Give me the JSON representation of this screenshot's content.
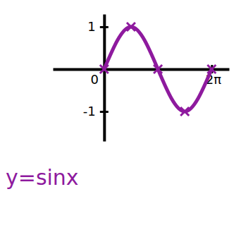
{
  "chart_data": {
    "type": "line",
    "title": "y=sinx",
    "x": [
      0,
      1.5708,
      3.1416,
      4.7124,
      6.2832
    ],
    "values": [
      0,
      1,
      0,
      -1,
      0
    ],
    "color": "#8e1a9e",
    "marker": "x",
    "line_style": "solid",
    "xlim": [
      -3.0,
      7.3
    ],
    "ylim": [
      -1.7,
      1.3
    ],
    "xticks": [
      0,
      {
        "value": 6.2832,
        "label": "2π"
      }
    ],
    "yticks": [
      -1,
      1
    ]
  }
}
